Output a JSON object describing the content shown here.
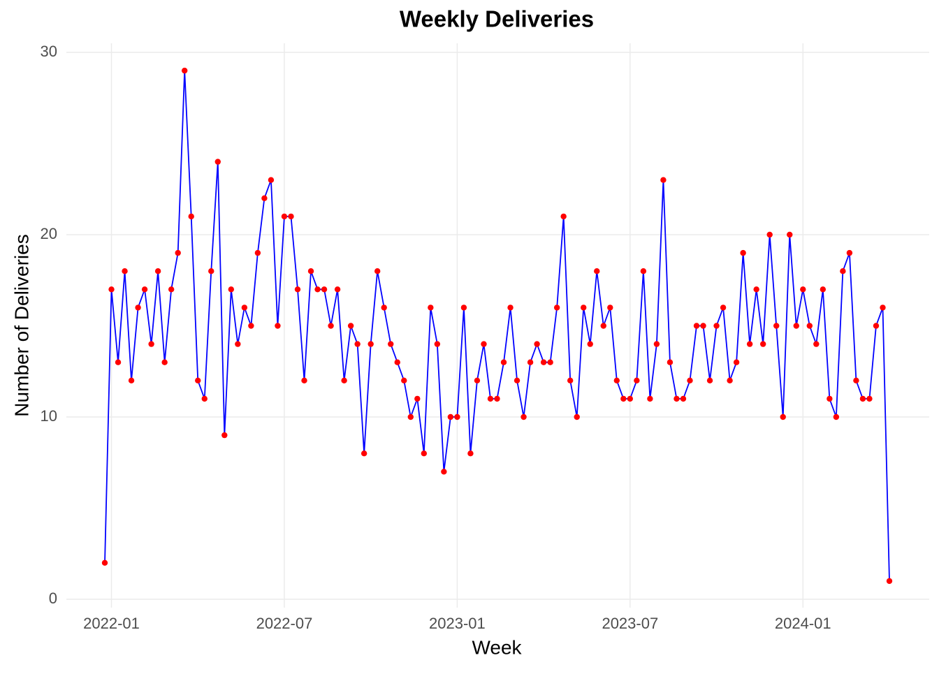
{
  "chart_data": {
    "type": "line",
    "title": "Weekly Deliveries",
    "x_label": "Week",
    "y_label": "Number of Deliveries",
    "categories": [
      null,
      "2022-01",
      null,
      null,
      null,
      null,
      null,
      null,
      null,
      null,
      null,
      null,
      null,
      null,
      null,
      null,
      null,
      null,
      null,
      null,
      null,
      null,
      null,
      null,
      null,
      null,
      null,
      "2022-07",
      null,
      null,
      null,
      null,
      null,
      null,
      null,
      null,
      null,
      null,
      null,
      null,
      null,
      null,
      null,
      null,
      null,
      null,
      null,
      null,
      null,
      null,
      null,
      null,
      null,
      "2023-01",
      null,
      null,
      null,
      null,
      null,
      null,
      null,
      null,
      null,
      null,
      null,
      null,
      null,
      null,
      null,
      null,
      null,
      null,
      null,
      null,
      null,
      null,
      null,
      null,
      null,
      "2023-07",
      null,
      null,
      null,
      null,
      null,
      null,
      null,
      null,
      null,
      null,
      null,
      null,
      null,
      null,
      null,
      null,
      null,
      null,
      null,
      null,
      null,
      null,
      null,
      null,
      null,
      "2024-01",
      null,
      null,
      null,
      null,
      null,
      null,
      null,
      null,
      null,
      null,
      null,
      null,
      null
    ],
    "values": [
      2,
      17,
      13,
      18,
      12,
      16,
      17,
      14,
      18,
      13,
      17,
      19,
      29,
      21,
      12,
      11,
      18,
      24,
      9,
      17,
      14,
      16,
      15,
      19,
      22,
      23,
      15,
      21,
      21,
      17,
      12,
      18,
      17,
      17,
      15,
      17,
      12,
      15,
      14,
      8,
      14,
      18,
      16,
      14,
      13,
      12,
      10,
      11,
      8,
      16,
      14,
      7,
      10,
      10,
      16,
      8,
      12,
      14,
      11,
      11,
      13,
      16,
      12,
      10,
      13,
      14,
      13,
      13,
      16,
      21,
      12,
      10,
      16,
      14,
      18,
      15,
      16,
      12,
      11,
      11,
      12,
      18,
      11,
      14,
      23,
      13,
      11,
      11,
      12,
      15,
      15,
      12,
      15,
      16,
      12,
      13,
      19,
      14,
      17,
      14,
      20,
      15,
      10,
      20,
      15,
      17,
      15,
      14,
      17,
      11,
      10,
      18,
      19,
      12,
      11,
      11,
      15,
      16,
      1
    ],
    "line_color": "#0000ff",
    "point_color": "#ff0000",
    "ylim": [
      0,
      30
    ],
    "yticks": [
      0,
      10,
      20,
      30
    ],
    "grid": true
  }
}
